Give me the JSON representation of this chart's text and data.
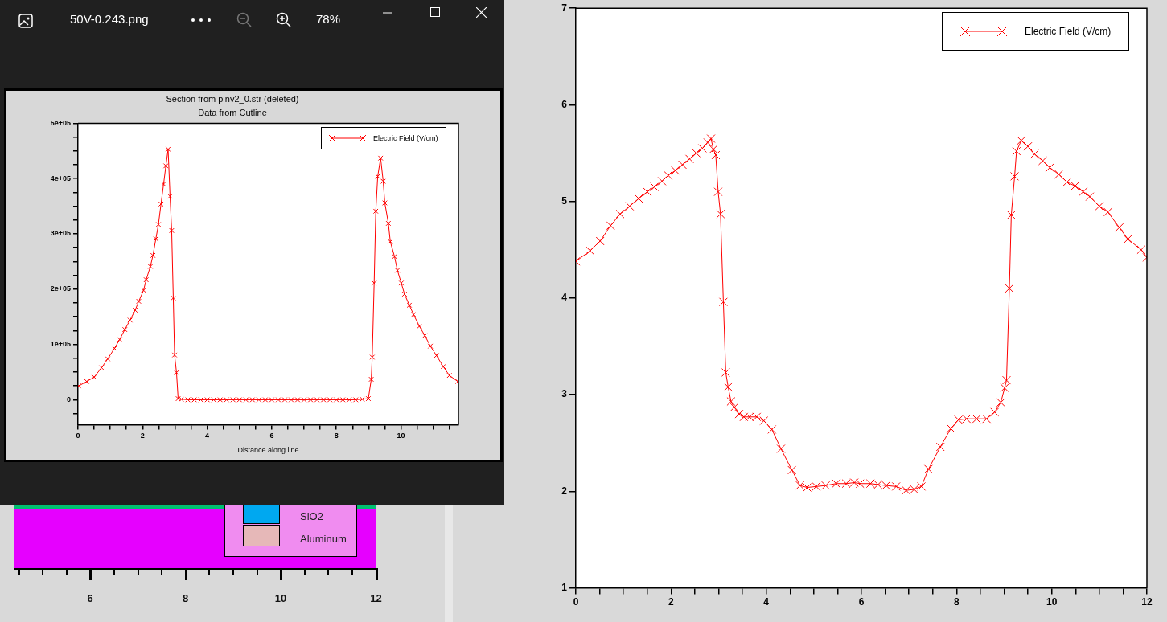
{
  "chart_data": [
    {
      "type": "line",
      "title": "Section from pinv2_0.str (deleted)",
      "subtitle": "Data from Cutline",
      "xlabel": "Distance along line",
      "annotations": [
        "50V-0.243.png",
        "78%",
        "SiO2",
        "Aluminum",
        "6",
        "8",
        "10",
        "12"
      ],
      "legend": "top right",
      "marker": "cross",
      "xlim": [
        0,
        11.78
      ],
      "ylim": [
        -45000,
        500000
      ],
      "xticks": [
        0,
        {
          "value": 0.5,
          "label": null
        },
        {
          "value": 1,
          "label": null
        },
        {
          "value": 1.5,
          "label": null
        },
        2,
        {
          "value": 2.5,
          "label": null
        },
        {
          "value": 3,
          "label": null
        },
        {
          "value": 3.5,
          "label": null
        },
        4,
        {
          "value": 4.5,
          "label": null
        },
        {
          "value": 5,
          "label": null
        },
        {
          "value": 5.5,
          "label": null
        },
        6,
        {
          "value": 6.5,
          "label": null
        },
        {
          "value": 7,
          "label": null
        },
        {
          "value": 7.5,
          "label": null
        },
        8,
        {
          "value": 8.5,
          "label": null
        },
        {
          "value": 9,
          "label": null
        },
        {
          "value": 9.5,
          "label": null
        },
        10,
        {
          "value": 10.5,
          "label": null
        },
        {
          "value": 11,
          "label": null
        },
        {
          "value": 11.5,
          "label": null
        }
      ],
      "yticks": [
        {
          "value": -25000,
          "label": null
        },
        0,
        {
          "value": 25000,
          "label": null
        },
        {
          "value": 50000,
          "label": null
        },
        {
          "value": 75000,
          "label": null
        },
        {
          "value": 100000,
          "label": "1e+05"
        },
        {
          "value": 125000,
          "label": null
        },
        {
          "value": 150000,
          "label": null
        },
        {
          "value": 175000,
          "label": null
        },
        {
          "value": 200000,
          "label": "2e+05"
        },
        {
          "value": 225000,
          "label": null
        },
        {
          "value": 250000,
          "label": null
        },
        {
          "value": 275000,
          "label": null
        },
        {
          "value": 300000,
          "label": "3e+05"
        },
        {
          "value": 325000,
          "label": null
        },
        {
          "value": 350000,
          "label": null
        },
        {
          "value": 375000,
          "label": null
        },
        {
          "value": 400000,
          "label": "4e+05"
        },
        {
          "value": 425000,
          "label": null
        },
        {
          "value": 450000,
          "label": null
        },
        {
          "value": 475000,
          "label": null
        },
        {
          "value": 500000,
          "label": "5e+05"
        }
      ],
      "series": [
        {
          "name": "Electric Field (V/cm)",
          "color": "#ff0000",
          "x": [
            0.02,
            0.27,
            0.5,
            0.73,
            0.92,
            1.13,
            1.29,
            1.45,
            1.61,
            1.77,
            1.88,
            2.03,
            2.11,
            2.24,
            2.32,
            2.41,
            2.49,
            2.57,
            2.65,
            2.72,
            2.79,
            2.85,
            2.9,
            2.95,
            2.99,
            3.05,
            3.1,
            3.2,
            3.4,
            3.6,
            3.8,
            4.0,
            4.2,
            4.4,
            4.6,
            4.8,
            5.0,
            5.2,
            5.4,
            5.6,
            5.8,
            6.0,
            6.2,
            6.4,
            6.6,
            6.8,
            7.0,
            7.2,
            7.4,
            7.6,
            7.8,
            8.0,
            8.2,
            8.4,
            8.6,
            8.8,
            8.99,
            9.08,
            9.11,
            9.17,
            9.22,
            9.28,
            9.37,
            9.45,
            9.5,
            9.61,
            9.67,
            9.8,
            9.89,
            10.01,
            10.11,
            10.26,
            10.39,
            10.57,
            10.74,
            10.91,
            11.1,
            11.31,
            11.5,
            11.76
          ],
          "values": [
            25000,
            33000,
            41000,
            58000,
            74000,
            93000,
            109000,
            127000,
            144000,
            162000,
            178000,
            198000,
            217000,
            241000,
            261000,
            291000,
            317000,
            354000,
            390000,
            423000,
            453000,
            368000,
            306000,
            184000,
            81000,
            49000,
            2000,
            1000,
            0,
            0,
            0,
            0,
            0,
            0,
            0,
            0,
            0,
            0,
            0,
            0,
            0,
            0,
            0,
            0,
            0,
            0,
            0,
            0,
            0,
            0,
            0,
            0,
            0,
            0,
            0,
            1000,
            2000,
            37000,
            77000,
            211000,
            341000,
            404000,
            437000,
            395000,
            356000,
            319000,
            286000,
            259000,
            234000,
            211000,
            191000,
            171000,
            154000,
            133000,
            116000,
            97000,
            80000,
            60000,
            44000,
            33000
          ]
        }
      ]
    },
    {
      "type": "line",
      "legend": "top right",
      "marker": "cross",
      "xlim": [
        0,
        12
      ],
      "ylim": [
        1,
        7
      ],
      "xticks": [
        0,
        {
          "value": 0.5,
          "label": null
        },
        {
          "value": 1,
          "label": null
        },
        {
          "value": 1.5,
          "label": null
        },
        2,
        {
          "value": 2.5,
          "label": null
        },
        {
          "value": 3,
          "label": null
        },
        {
          "value": 3.5,
          "label": null
        },
        4,
        {
          "value": 4.5,
          "label": null
        },
        {
          "value": 5,
          "label": null
        },
        {
          "value": 5.5,
          "label": null
        },
        6,
        {
          "value": 6.5,
          "label": null
        },
        {
          "value": 7,
          "label": null
        },
        {
          "value": 7.5,
          "label": null
        },
        8,
        {
          "value": 8.5,
          "label": null
        },
        {
          "value": 9,
          "label": null
        },
        {
          "value": 9.5,
          "label": null
        },
        10,
        {
          "value": 10.5,
          "label": null
        },
        {
          "value": 11,
          "label": null
        },
        {
          "value": 11.5,
          "label": null
        },
        12
      ],
      "yticks": [
        1,
        2,
        3,
        4,
        5,
        6,
        7
      ],
      "series": [
        {
          "name": "Electric Field (V/cm)",
          "color": "#ff0000",
          "x": [
            0,
            0.3,
            0.51,
            0.73,
            0.93,
            1.13,
            1.32,
            1.5,
            1.65,
            1.81,
            1.94,
            2.09,
            2.24,
            2.39,
            2.53,
            2.66,
            2.77,
            2.84,
            2.89,
            2.94,
            2.99,
            3.04,
            3.1,
            3.15,
            3.2,
            3.26,
            3.33,
            3.43,
            3.53,
            3.65,
            3.8,
            3.95,
            4.12,
            4.31,
            4.54,
            4.71,
            4.86,
            5.05,
            5.25,
            5.47,
            5.68,
            5.85,
            5.97,
            6.19,
            6.35,
            6.52,
            6.73,
            6.94,
            7.11,
            7.26,
            7.41,
            7.66,
            7.88,
            8.04,
            8.21,
            8.42,
            8.63,
            8.8,
            8.93,
            9.01,
            9.05,
            9.11,
            9.15,
            9.22,
            9.26,
            9.36,
            9.5,
            9.64,
            9.81,
            9.96,
            10.15,
            10.32,
            10.49,
            10.66,
            10.8,
            11.0,
            11.18,
            11.42,
            11.6,
            11.88,
            12
          ],
          "values": [
            4.38,
            4.49,
            4.59,
            4.75,
            4.87,
            4.95,
            5.03,
            5.1,
            5.15,
            5.21,
            5.27,
            5.32,
            5.38,
            5.44,
            5.5,
            5.55,
            5.61,
            5.65,
            5.54,
            5.48,
            5.1,
            4.87,
            3.96,
            3.23,
            3.08,
            2.93,
            2.87,
            2.8,
            2.77,
            2.77,
            2.77,
            2.73,
            2.64,
            2.44,
            2.22,
            2.06,
            2.04,
            2.05,
            2.06,
            2.08,
            2.08,
            2.09,
            2.08,
            2.08,
            2.07,
            2.06,
            2.05,
            2.01,
            2.02,
            2.05,
            2.23,
            2.46,
            2.65,
            2.74,
            2.75,
            2.75,
            2.75,
            2.82,
            2.92,
            3.07,
            3.15,
            4.1,
            4.86,
            5.26,
            5.52,
            5.63,
            5.57,
            5.49,
            5.42,
            5.35,
            5.28,
            5.2,
            5.16,
            5.1,
            5.05,
            4.95,
            4.89,
            4.73,
            4.61,
            4.5,
            4.42
          ]
        }
      ]
    }
  ]
}
